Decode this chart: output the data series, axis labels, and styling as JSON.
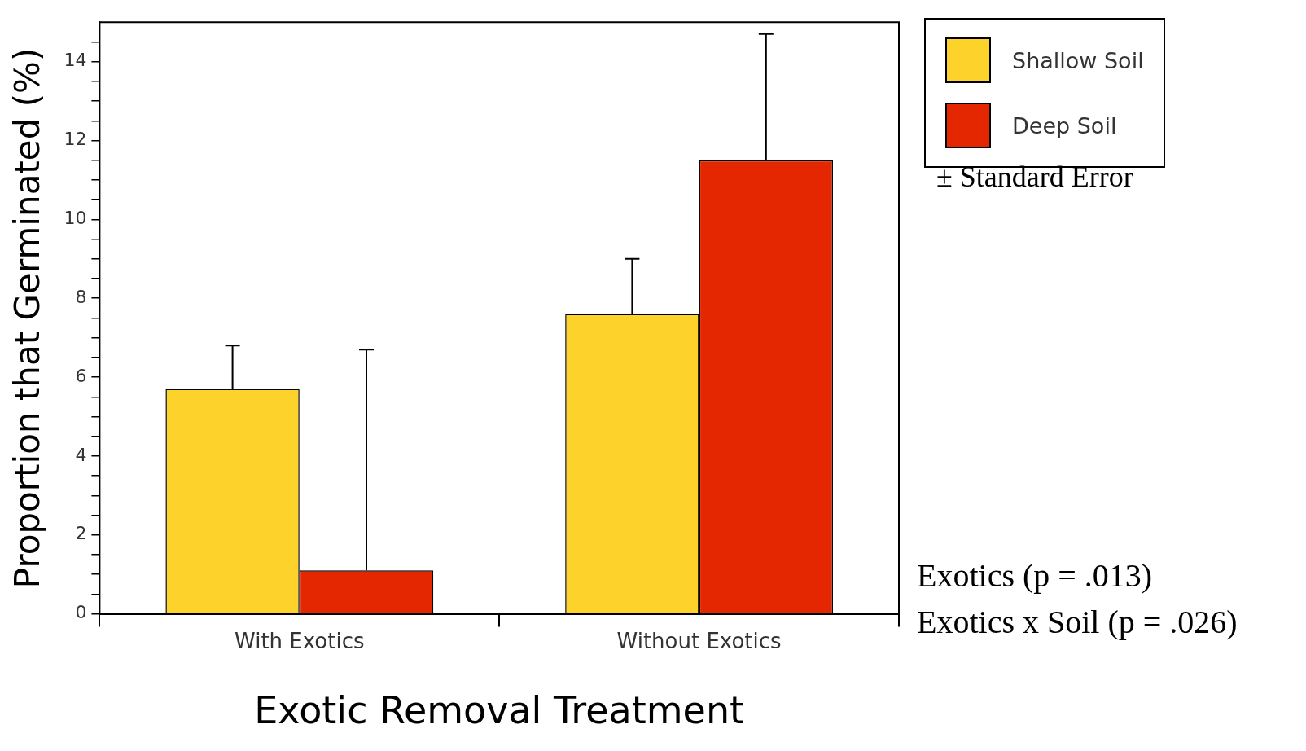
{
  "chart_data": {
    "type": "bar",
    "xlabel": "Exotic Removal Treatment",
    "ylabel": "Proportion that Germinated (%)",
    "categories": [
      "With Exotics",
      "Without Exotics"
    ],
    "series": [
      {
        "name": "Shallow Soil",
        "color": "#fdd22a",
        "values": [
          5.7,
          7.6
        ],
        "errors": [
          [
            5.7,
            6.8
          ],
          [
            7.6,
            9.0
          ]
        ]
      },
      {
        "name": "Deep Soil",
        "color": "#e42700",
        "values": [
          1.1,
          11.5
        ],
        "errors": [
          [
            1.1,
            6.7
          ],
          [
            11.5,
            14.7
          ]
        ]
      }
    ],
    "ylim": [
      0,
      15
    ],
    "yticks": [
      0,
      {
        "value": 0.5,
        "label": null
      },
      {
        "value": 1,
        "label": null
      },
      {
        "value": 1.5,
        "label": null
      },
      2,
      {
        "value": 2.5,
        "label": null
      },
      {
        "value": 3,
        "label": null
      },
      {
        "value": 3.5,
        "label": null
      },
      4,
      {
        "value": 4.5,
        "label": null
      },
      {
        "value": 5,
        "label": null
      },
      {
        "value": 5.5,
        "label": null
      },
      6,
      {
        "value": 6.5,
        "label": null
      },
      {
        "value": 7,
        "label": null
      },
      {
        "value": 7.5,
        "label": null
      },
      8,
      {
        "value": 8.5,
        "label": null
      },
      {
        "value": 9,
        "label": null
      },
      {
        "value": 9.5,
        "label": null
      },
      10,
      {
        "value": 10.5,
        "label": null
      },
      {
        "value": 11,
        "label": null
      },
      {
        "value": 11.5,
        "label": null
      },
      12,
      {
        "value": 12.5,
        "label": null
      },
      {
        "value": 13,
        "label": null
      },
      {
        "value": 13.5,
        "label": null
      },
      14,
      {
        "value": 14.5,
        "label": null
      }
    ],
    "legend": "top right",
    "annotations": [
      "± Standard Error",
      "Exotics (p = .013)",
      "Exotics x Soil (p = .026)"
    ]
  }
}
